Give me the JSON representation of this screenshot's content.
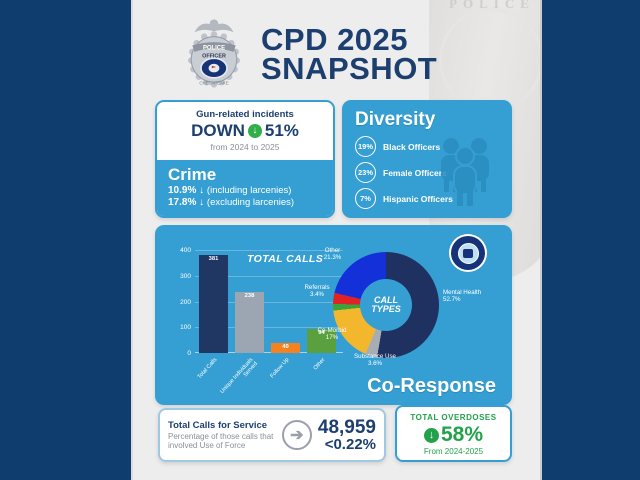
{
  "header": {
    "title_line1": "CPD 2025",
    "title_line2": "SNAPSHOT"
  },
  "crime_card": {
    "gun_label": "Gun-related incidents",
    "down_word": "DOWN",
    "down_arrow": "↓",
    "down_pct": "51%",
    "down_sub": "from 2024 to 2025",
    "title": "Crime",
    "stats": [
      {
        "pct": "10.9%",
        "arrow": "↓",
        "label": "(including larcenies)"
      },
      {
        "pct": "17.8%",
        "arrow": "↓",
        "label": "(excluding larcenies)"
      }
    ]
  },
  "diversity_card": {
    "title": "Diversity",
    "stats": [
      {
        "pct": "19%",
        "label": "Black Officers"
      },
      {
        "pct": "23%",
        "label": "Female Officers"
      },
      {
        "pct": "7%",
        "label": "Hispanic Officers"
      }
    ]
  },
  "co_response": {
    "section_title": "Co-Response",
    "donut_title_line1": "CALL",
    "donut_title_line2": "TYPES"
  },
  "chart_data": [
    {
      "type": "bar",
      "title": "TOTAL CALLS",
      "categories": [
        "Total Calls",
        "Unique Individuals Served",
        "Follow Up",
        "Other"
      ],
      "values": [
        381,
        238,
        40,
        94
      ],
      "value_labels": [
        "381",
        "238",
        "40",
        "94"
      ],
      "bar_colors": [
        "#203763",
        "#9ba6b2",
        "#f5821f",
        "#5ba03f"
      ],
      "ylim": [
        0,
        400
      ],
      "yticks": [
        0,
        100,
        200,
        300,
        400
      ],
      "grid": true
    },
    {
      "type": "pie",
      "donut": true,
      "title": "CALL TYPES",
      "slices": [
        {
          "name": "Mental Health",
          "pct_label": "52.7%",
          "value": 52.7,
          "color": "#1e3160"
        },
        {
          "name": "Substance Use",
          "pct_label": "3.6%",
          "value": 3.6,
          "color": "#a7adb4"
        },
        {
          "name": "Co-Morbid",
          "pct_label": "17%",
          "value": 17,
          "color": "#f3b72e"
        },
        {
          "name": "",
          "pct_label": "",
          "value": 2.0,
          "color": "#3ba33c"
        },
        {
          "name": "Referrals",
          "pct_label": "3.4%",
          "value": 3.4,
          "color": "#e02227"
        },
        {
          "name": "Other",
          "pct_label": "21.3%",
          "value": 21.3,
          "color": "#1430d8"
        }
      ]
    }
  ],
  "service_card": {
    "title": "Total Calls for Service",
    "subtitle": "Percentage of those calls that involved Use of Force",
    "total": "48,959",
    "force_pct": "<0.22%"
  },
  "overdose_card": {
    "title": "TOTAL OVERDOSES",
    "arrow": "↓",
    "pct": "58%",
    "sub": "From 2024-2025"
  },
  "watermark_text": "POLICE",
  "colors": {
    "sidebar_navy": "#0e3d6e",
    "title_navy": "#1c3f70",
    "card_blue": "#359fd3",
    "accent_green": "#2fae4a",
    "overdose_green": "#22a24b",
    "background_gray": "#ededee"
  }
}
